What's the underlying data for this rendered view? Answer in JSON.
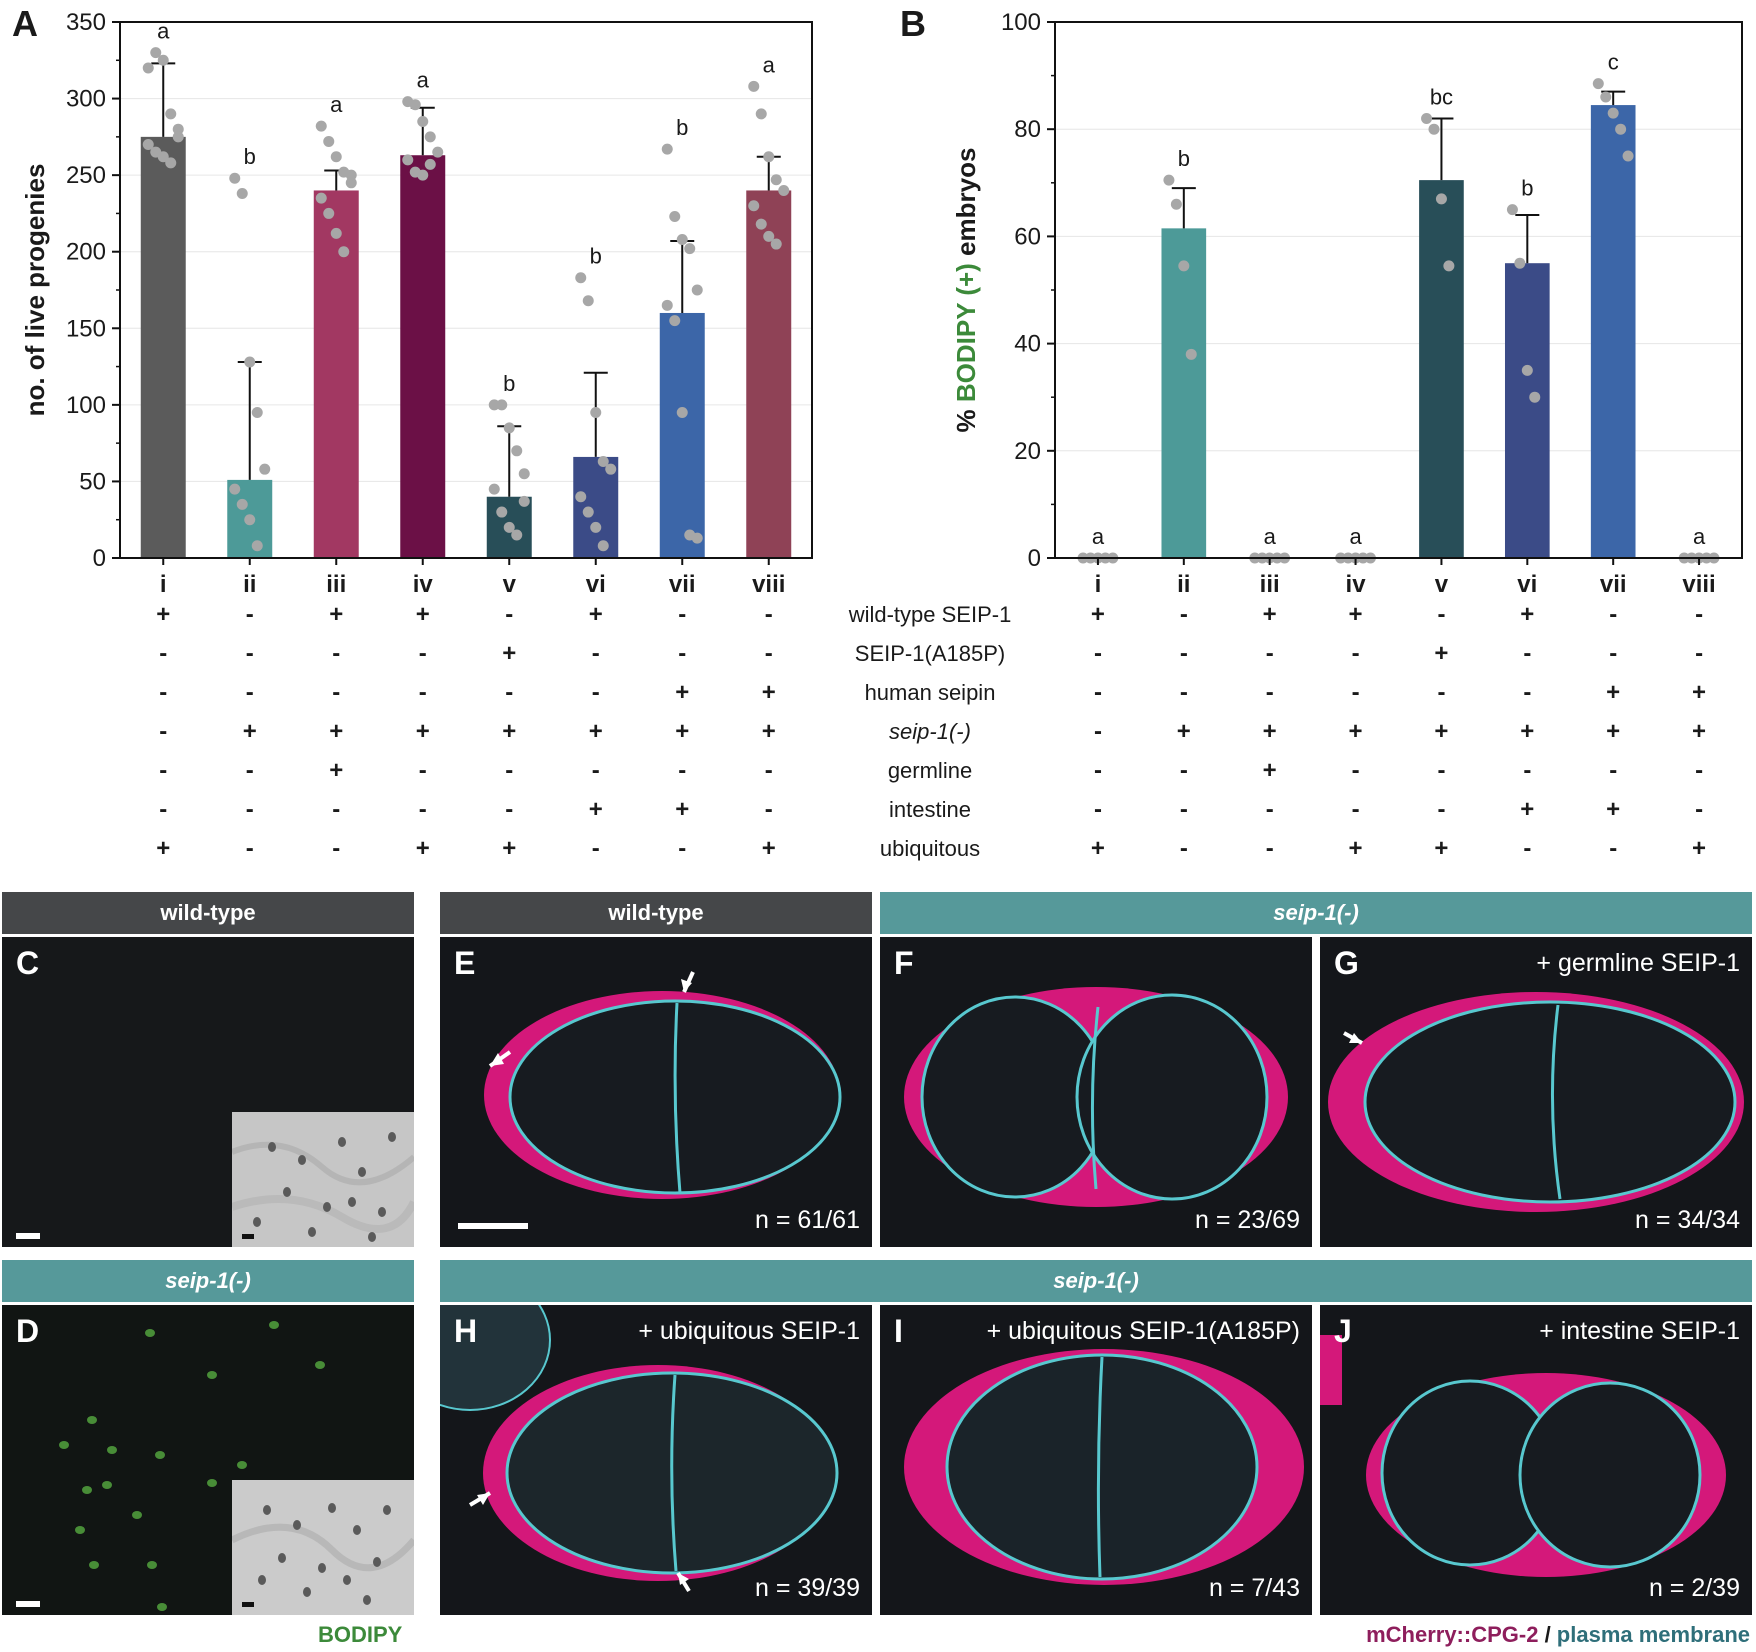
{
  "chart_data": [
    {
      "type": "bar",
      "panel": "A",
      "ylabel": "no. of live progenies",
      "ylim": [
        0,
        350
      ],
      "yticks": [
        0,
        50,
        100,
        150,
        200,
        250,
        300,
        350
      ],
      "categories": [
        "i",
        "ii",
        "iii",
        "iv",
        "v",
        "vi",
        "vii",
        "viii"
      ],
      "values": [
        275,
        51,
        240,
        263,
        40,
        66,
        160,
        240
      ],
      "errors": [
        48,
        77,
        13,
        31,
        46,
        55,
        47,
        22
      ],
      "letters": [
        "a",
        "b",
        "a",
        "a",
        "b",
        "b",
        "b",
        "a"
      ],
      "colors": [
        "#5b5b5b",
        "#4d9a98",
        "#a23862",
        "#6b1046",
        "#284e58",
        "#3b4b87",
        "#3c66a8",
        "#8f4256"
      ],
      "points": [
        [
          320,
          330,
          325,
          290,
          280,
          270,
          265,
          262,
          258,
          275
        ],
        [
          248,
          238,
          128,
          95,
          58,
          45,
          35,
          25,
          8
        ],
        [
          282,
          272,
          262,
          252,
          245,
          235,
          225,
          212,
          200,
          250
        ],
        [
          298,
          296,
          285,
          275,
          265,
          260,
          252,
          250,
          257
        ],
        [
          100,
          100,
          85,
          70,
          55,
          45,
          30,
          20,
          15,
          37
        ],
        [
          183,
          168,
          95,
          63,
          58,
          40,
          30,
          20,
          8
        ],
        [
          267,
          223,
          208,
          202,
          175,
          165,
          155,
          95,
          15,
          13
        ],
        [
          308,
          290,
          262,
          247,
          240,
          230,
          218,
          210,
          205
        ]
      ]
    },
    {
      "type": "bar",
      "panel": "B",
      "ylabel_parts": [
        "% ",
        "BODIPY (+)",
        " embryos"
      ],
      "ylim": [
        0,
        100
      ],
      "yticks": [
        0,
        20,
        40,
        60,
        80,
        100
      ],
      "categories": [
        "i",
        "ii",
        "iii",
        "iv",
        "v",
        "vi",
        "vii",
        "viii"
      ],
      "values": [
        0,
        61.5,
        0,
        0,
        70.5,
        55,
        84.5,
        0
      ],
      "errors": [
        0,
        7.5,
        0,
        0,
        11.5,
        9,
        2.5,
        0
      ],
      "letters": [
        "a",
        "b",
        "a",
        "a",
        "bc",
        "b",
        "c",
        "a"
      ],
      "colors": [
        "#5b5b5b",
        "#4d9a98",
        "#a23862",
        "#6b1046",
        "#284e58",
        "#3b4b87",
        "#3c66a8",
        "#8f4256"
      ],
      "points": [
        [
          0,
          0,
          0,
          0,
          0
        ],
        [
          70.5,
          66,
          54.5,
          38
        ],
        [
          0,
          0,
          0,
          0,
          0
        ],
        [
          0,
          0,
          0,
          0,
          0
        ],
        [
          82,
          80,
          67,
          54.5
        ],
        [
          65,
          55,
          35,
          30
        ],
        [
          88.5,
          86,
          83,
          80,
          75
        ],
        [
          0,
          0,
          0,
          0,
          0
        ]
      ]
    }
  ],
  "panels": {
    "A": "A",
    "B": "B"
  },
  "genotype_table": {
    "rows": [
      {
        "label": "wild-type SEIP-1",
        "italic": false,
        "A": [
          "+",
          "-",
          "+",
          "+",
          "-",
          "+",
          "-",
          "-"
        ],
        "B": [
          "+",
          "-",
          "+",
          "+",
          "-",
          "+",
          "-",
          "-"
        ]
      },
      {
        "label": "SEIP-1(A185P)",
        "italic": false,
        "A": [
          "-",
          "-",
          "-",
          "-",
          "+",
          "-",
          "-",
          "-"
        ],
        "B": [
          "-",
          "-",
          "-",
          "-",
          "+",
          "-",
          "-",
          "-"
        ]
      },
      {
        "label": "human seipin",
        "italic": false,
        "A": [
          "-",
          "-",
          "-",
          "-",
          "-",
          "-",
          "+",
          "+"
        ],
        "B": [
          "-",
          "-",
          "-",
          "-",
          "-",
          "-",
          "+",
          "+"
        ]
      },
      {
        "label": "seip-1(-)",
        "italic": true,
        "A": [
          "-",
          "+",
          "+",
          "+",
          "+",
          "+",
          "+",
          "+"
        ],
        "B": [
          "-",
          "+",
          "+",
          "+",
          "+",
          "+",
          "+",
          "+"
        ]
      },
      {
        "label": "germline",
        "italic": false,
        "A": [
          "-",
          "-",
          "+",
          "-",
          "-",
          "-",
          "-",
          "-"
        ],
        "B": [
          "-",
          "-",
          "+",
          "-",
          "-",
          "-",
          "-",
          "-"
        ]
      },
      {
        "label": "intestine",
        "italic": false,
        "A": [
          "-",
          "-",
          "-",
          "-",
          "-",
          "+",
          "+",
          "-"
        ],
        "B": [
          "-",
          "-",
          "-",
          "-",
          "-",
          "+",
          "+",
          "-"
        ]
      },
      {
        "label": "ubiquitous",
        "italic": false,
        "A": [
          "+",
          "-",
          "-",
          "+",
          "+",
          "-",
          "-",
          "+"
        ],
        "B": [
          "+",
          "-",
          "-",
          "+",
          "+",
          "-",
          "-",
          "+"
        ]
      }
    ]
  },
  "micrographs": {
    "headers": {
      "wt_left": "wild-type",
      "seip_left": "seip-1(-)",
      "wt_E": "wild-type",
      "seip_FG": "seip-1(-)",
      "seip_HIJ": "seip-1(-)"
    },
    "C": {
      "letter": "C"
    },
    "D": {
      "letter": "D"
    },
    "E": {
      "letter": "E",
      "count": "n = 61/61"
    },
    "F": {
      "letter": "F",
      "count": "n = 23/69"
    },
    "G": {
      "letter": "G",
      "condition": "+ germline SEIP-1",
      "count": "n = 34/34"
    },
    "H": {
      "letter": "H",
      "condition": "+ ubiquitous SEIP-1",
      "count": "n = 39/39"
    },
    "I": {
      "letter": "I",
      "condition": "+ ubiquitous SEIP-1(A185P)",
      "count": "n = 7/43"
    },
    "J": {
      "letter": "J",
      "condition": "+ intestine SEIP-1",
      "count": "n = 2/39"
    },
    "bodipy_caption": "BODIPY",
    "legend_parts": [
      "mCherry::CPG-2",
      " / ",
      "plasma membrane"
    ],
    "colors": {
      "bodipy": "#3c8a3a",
      "mcherry": "#8e1e5c",
      "membrane": "#2f6f7a",
      "teal_header": "#56999a",
      "dark_header": "#454749"
    }
  }
}
